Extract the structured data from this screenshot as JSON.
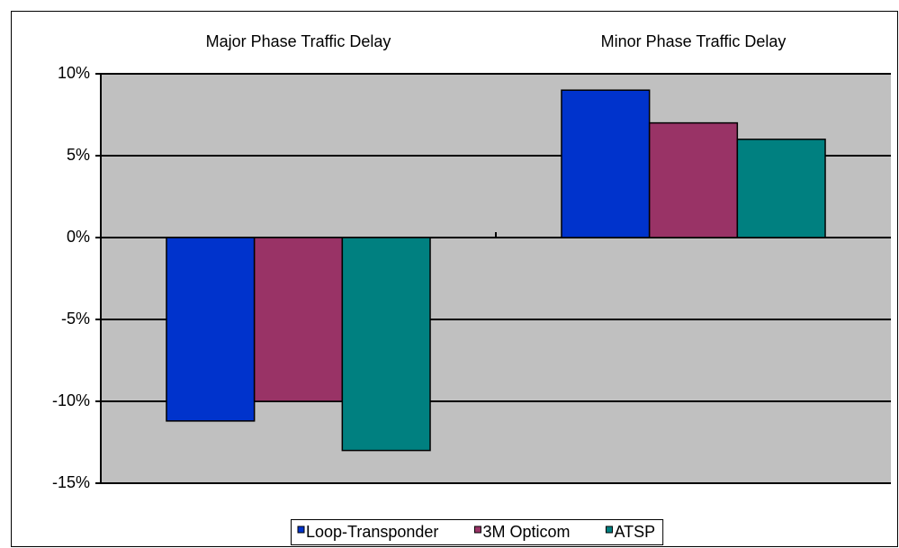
{
  "chart_data": {
    "type": "bar",
    "categories": [
      "Major Phase Traffic Delay",
      "Minor Phase Traffic Delay"
    ],
    "series": [
      {
        "name": "Loop-Transponder",
        "color": "#0033cc",
        "values": [
          -11.2,
          9
        ]
      },
      {
        "name": "3M Opticom",
        "color": "#993366",
        "values": [
          -10,
          7
        ]
      },
      {
        "name": "ATSP",
        "color": "#008080",
        "values": [
          -13,
          6
        ]
      }
    ],
    "ylim": [
      -15,
      10
    ],
    "yticks": [
      {
        "value": -15,
        "label": "-15%"
      },
      {
        "value": -10,
        "label": "-10%"
      },
      {
        "value": -5,
        "label": "-5%"
      },
      {
        "value": 0,
        "label": "0%"
      },
      {
        "value": 5,
        "label": "5%"
      },
      {
        "value": 10,
        "label": "10%"
      }
    ],
    "grid": true,
    "legend": "bottom"
  }
}
